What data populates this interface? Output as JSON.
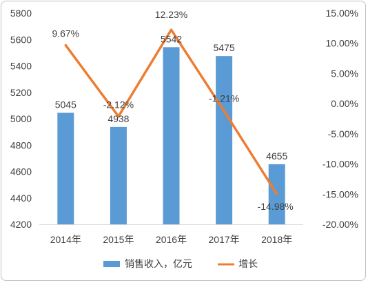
{
  "chart_data": {
    "type": "bar+line",
    "categories": [
      "2014年",
      "2015年",
      "2016年",
      "2017年",
      "2018年"
    ],
    "series": [
      {
        "name": "销售收入，亿元",
        "type": "bar",
        "axis": "left",
        "values": [
          5045,
          4938,
          5542,
          5475,
          4655
        ],
        "labels": [
          "5045",
          "4938",
          "5542",
          "5475",
          "4655"
        ],
        "color": "#5b9bd5"
      },
      {
        "name": "增长",
        "type": "line",
        "axis": "right",
        "values": [
          9.67,
          -2.12,
          12.23,
          -1.21,
          -14.98
        ],
        "labels": [
          "9.67%",
          "-2.12%",
          "12.23%",
          "-1.21%",
          "-14.98%"
        ],
        "color": "#ed7d31"
      }
    ],
    "y_left": {
      "ylim": [
        4200,
        5800
      ],
      "ticks": [
        4200,
        4400,
        4600,
        4800,
        5000,
        5200,
        5400,
        5600,
        5800
      ],
      "tick_labels": [
        "4200",
        "4400",
        "4600",
        "4800",
        "5000",
        "5200",
        "5400",
        "5600",
        "5800"
      ]
    },
    "y_right": {
      "ylim": [
        -20,
        15
      ],
      "ticks": [
        -20,
        -15,
        -10,
        -5,
        0,
        5,
        10,
        15
      ],
      "tick_labels": [
        "-20.00%",
        "-15.00%",
        "-10.00%",
        "-5.00%",
        "0.00%",
        "5.00%",
        "10.00%",
        "15.00%"
      ]
    },
    "title": "",
    "xlabel": "",
    "ylabel": "",
    "grid": false,
    "legend": {
      "position": "bottom",
      "entries": [
        "销售收入，亿元",
        "增长"
      ]
    }
  }
}
